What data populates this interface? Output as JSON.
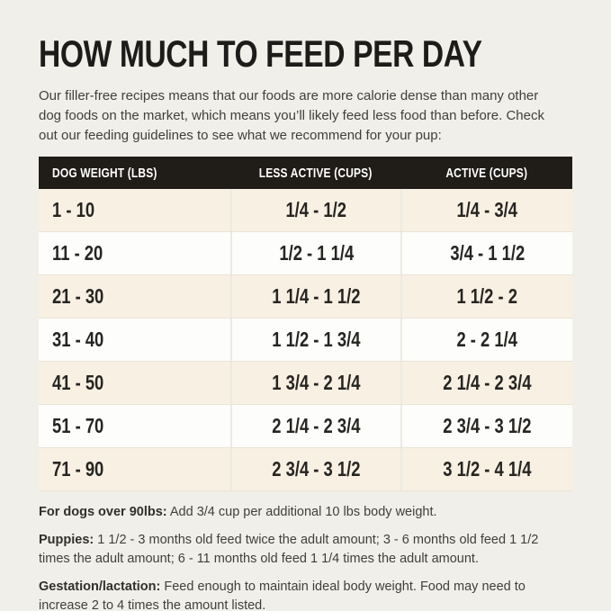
{
  "title": "HOW MUCH TO FEED PER DAY",
  "intro": "Our filler-free recipes means that our foods are more calorie dense than many other dog foods on the market, which means you’ll likely feed less food than before. Check out our feeding guidelines to see what we recommend for your pup:",
  "table": {
    "headers": [
      "DOG WEIGHT (LBS)",
      "LESS ACTIVE (CUPS)",
      "ACTIVE (CUPS)"
    ],
    "rows": [
      {
        "weight": "1 - 10",
        "less_active": "1/4 - 1/2",
        "active": "1/4 - 3/4"
      },
      {
        "weight": "11 - 20",
        "less_active": "1/2 - 1 1/4",
        "active": "3/4 - 1 1/2"
      },
      {
        "weight": "21 - 30",
        "less_active": "1 1/4 - 1 1/2",
        "active": "1 1/2 - 2"
      },
      {
        "weight": "31 - 40",
        "less_active": "1 1/2 - 1 3/4",
        "active": "2 - 2 1/4"
      },
      {
        "weight": "41 - 50",
        "less_active": "1 3/4 - 2 1/4",
        "active": "2 1/4 - 2 3/4"
      },
      {
        "weight": "51 - 70",
        "less_active": "2 1/4 - 2 3/4",
        "active": "2 3/4 - 3 1/2"
      },
      {
        "weight": "71 - 90",
        "less_active": "2 3/4 - 3 1/2",
        "active": "3 1/2 - 4 1/4"
      }
    ]
  },
  "notes": [
    {
      "label": "For dogs over 90lbs:",
      "text": "Add 3/4 cup per additional 10 lbs body weight."
    },
    {
      "label": "Puppies:",
      "text": "1 1/2 - 3 months old feed twice the adult amount; 3 - 6 months old feed 1 1/2 times the adult amount; 6 - 11 months old feed 1 1/4 times the adult amount."
    },
    {
      "label": "Gestation/lactation:",
      "text": "Feed enough to maintain ideal body weight. Food may need to increase 2 to 4 times the amount listed."
    }
  ],
  "colors": {
    "page_bg": "#f1efe9",
    "header_bg": "#201c18",
    "header_text": "#ffffff",
    "row_beige": "#f8f0e3",
    "row_white": "#fdfdfb",
    "divider": "#e9e3d8",
    "title_text": "#1d1c1a",
    "body_text": "#413f3c"
  },
  "chart_data": {
    "type": "table",
    "title": "HOW MUCH TO FEED PER DAY",
    "columns": [
      "DOG WEIGHT (LBS)",
      "LESS ACTIVE (CUPS)",
      "ACTIVE (CUPS)"
    ],
    "rows": [
      [
        "1 - 10",
        "1/4 - 1/2",
        "1/4 - 3/4"
      ],
      [
        "11 - 20",
        "1/2 - 1 1/4",
        "3/4 - 1 1/2"
      ],
      [
        "21 - 30",
        "1 1/4 - 1 1/2",
        "1 1/2 - 2"
      ],
      [
        "31 - 40",
        "1 1/2 - 1 3/4",
        "2 - 2 1/4"
      ],
      [
        "41 - 50",
        "1 3/4 - 2 1/4",
        "2 1/4 - 2 3/4"
      ],
      [
        "51 - 70",
        "2 1/4 - 2 3/4",
        "2 3/4 - 3 1/2"
      ],
      [
        "71 - 90",
        "2 3/4 - 3 1/2",
        "3 1/2 - 4 1/4"
      ]
    ]
  }
}
